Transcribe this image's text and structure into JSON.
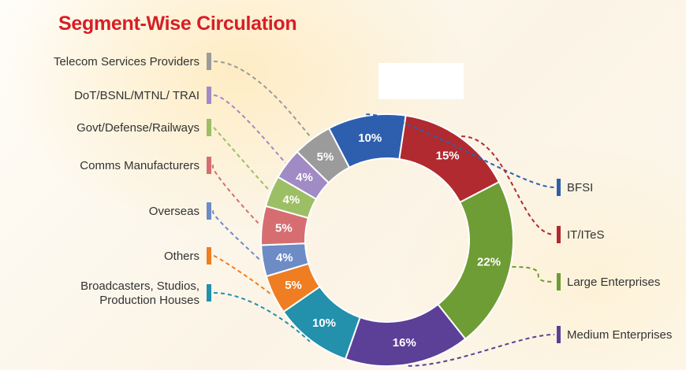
{
  "title": "Segment-Wise Circulation",
  "chart_data": {
    "type": "pie",
    "donut": true,
    "title": "Segment-Wise Circulation",
    "value_unit": "%",
    "segments": [
      {
        "label": "BFSI",
        "value": 10,
        "value_label": "10%",
        "color": "#2d5fae",
        "side": "right"
      },
      {
        "label": "IT/ITeS",
        "value": 15,
        "value_label": "15%",
        "color": "#b02a2f",
        "side": "right"
      },
      {
        "label": "Large Enterprises",
        "value": 22,
        "value_label": "22%",
        "color": "#6e9c35",
        "side": "right"
      },
      {
        "label": "Medium Enterprises",
        "value": 16,
        "value_label": "16%",
        "color": "#5c3f97",
        "side": "right"
      },
      {
        "label": "Broadcasters, Studios, Production Houses",
        "label_lines": [
          "Broadcasters, Studios,",
          "Production Houses"
        ],
        "value": 10,
        "value_label": "10%",
        "color": "#2390ac",
        "side": "left"
      },
      {
        "label": "Others",
        "value": 5,
        "value_label": "5%",
        "color": "#ef7d22",
        "side": "left"
      },
      {
        "label": "Overseas",
        "value": 4,
        "value_label": "4%",
        "color": "#6d8bc4",
        "side": "left"
      },
      {
        "label": "Comms Manufacturers",
        "value": 5,
        "value_label": "5%",
        "color": "#d66e71",
        "side": "left"
      },
      {
        "label": "Govt/Defense/Railways",
        "value": 4,
        "value_label": "4%",
        "color": "#9cbf65",
        "side": "left"
      },
      {
        "label": "DoT/BSNL/MTNL/ TRAI",
        "value": 4,
        "value_label": "4%",
        "color": "#a18bc4",
        "side": "left"
      },
      {
        "label": "Telecom Services Providers",
        "value": 5,
        "value_label": "5%",
        "color": "#9b9b9b",
        "side": "left"
      }
    ]
  }
}
